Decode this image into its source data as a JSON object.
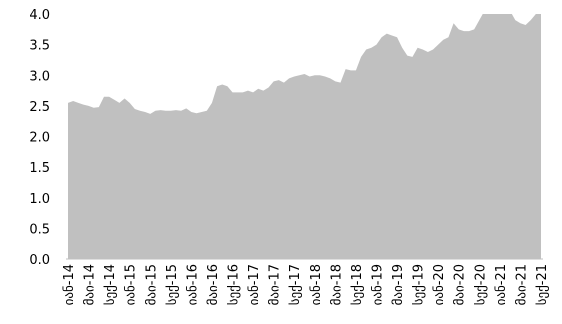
{
  "chart_data": {
    "type": "area",
    "color": "#c0c0c0",
    "categories": [
      "იან-14",
      null,
      null,
      null,
      "მაი-14",
      null,
      null,
      null,
      "სექ-14",
      null,
      null,
      null,
      "იან-15",
      null,
      null,
      null,
      "მაი-15",
      null,
      null,
      null,
      "სექ-15",
      null,
      null,
      null,
      "იან-16",
      null,
      null,
      null,
      "მაი-16",
      null,
      null,
      null,
      "სექ-16",
      null,
      null,
      null,
      "იან-17",
      null,
      null,
      null,
      "მაი-17",
      null,
      null,
      null,
      "სექ-17",
      null,
      null,
      null,
      "იან-18",
      null,
      null,
      null,
      "მაი-18",
      null,
      null,
      null,
      "სექ-18",
      null,
      null,
      null,
      "იან-19",
      null,
      null,
      null,
      "მაი-19",
      null,
      null,
      null,
      "სექ-19",
      null,
      null,
      null,
      "იან-20",
      null,
      null,
      null,
      "მაი-20",
      null,
      null,
      null,
      "სექ-20",
      null,
      null,
      null,
      "იან-21",
      null,
      null,
      null,
      "მაი-21",
      null,
      null,
      null,
      "სექ-21"
    ],
    "values": [
      2.55,
      2.58,
      2.55,
      2.52,
      2.5,
      2.47,
      2.48,
      2.65,
      2.65,
      2.6,
      2.55,
      2.62,
      2.55,
      2.45,
      2.42,
      2.4,
      2.37,
      2.42,
      2.43,
      2.42,
      2.42,
      2.43,
      2.42,
      2.46,
      2.4,
      2.38,
      2.4,
      2.42,
      2.55,
      2.82,
      2.85,
      2.82,
      2.72,
      2.72,
      2.72,
      2.75,
      2.72,
      2.78,
      2.75,
      2.8,
      2.9,
      2.92,
      2.88,
      2.95,
      2.98,
      3.0,
      3.02,
      2.98,
      3.0,
      3.0,
      2.98,
      2.95,
      2.9,
      2.88,
      3.1,
      3.08,
      3.08,
      3.3,
      3.42,
      3.45,
      3.5,
      3.62,
      3.68,
      3.65,
      3.62,
      3.45,
      3.32,
      3.3,
      3.45,
      3.42,
      3.38,
      3.42,
      3.5,
      3.58,
      3.62,
      3.85,
      3.75,
      3.72,
      3.72,
      3.75,
      3.9,
      4.05,
      4.1,
      4.1,
      4.08,
      4.1,
      4.05,
      3.9,
      3.85,
      3.82,
      3.9,
      4.0,
      4.05
    ],
    "ylim": [
      0,
      4.0
    ],
    "yticks": [
      {
        "value": 0,
        "label": "0.0"
      },
      0.5,
      {
        "value": 1,
        "label": "1.0"
      },
      1.5,
      {
        "value": 2,
        "label": "2.0"
      },
      2.5,
      {
        "value": 3,
        "label": "3.0"
      },
      3.5,
      {
        "value": 4,
        "label": "4.0"
      }
    ]
  }
}
